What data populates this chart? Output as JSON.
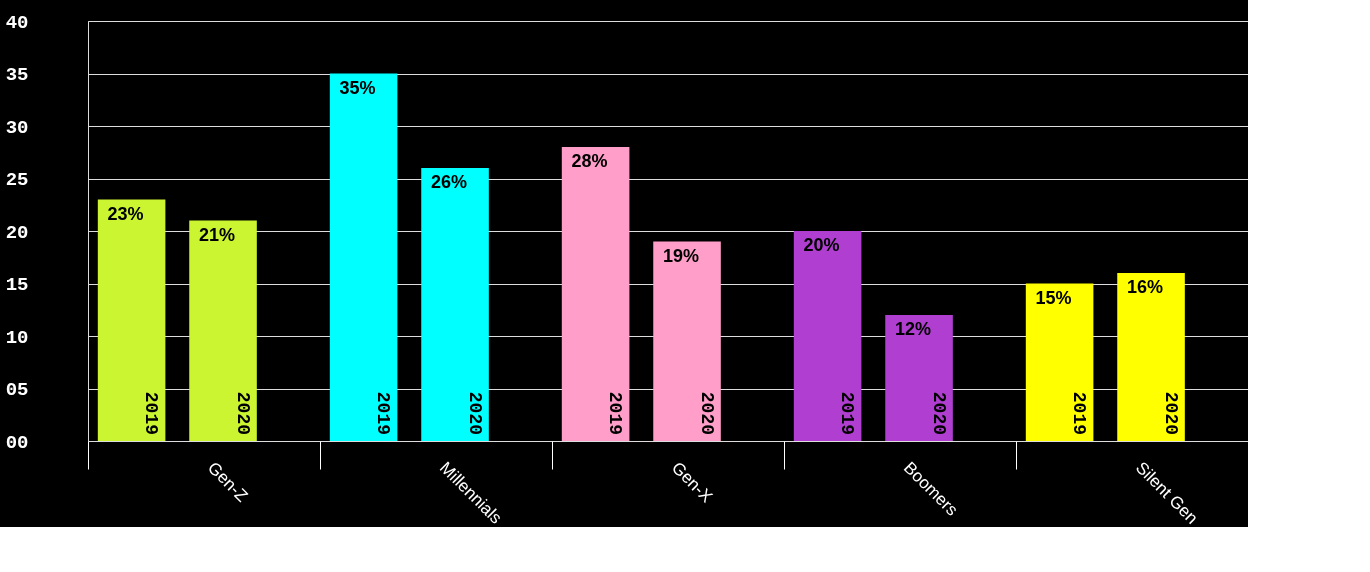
{
  "chart_data": {
    "type": "bar",
    "categories": [
      "Gen-Z",
      "Millennials",
      "Gen-X",
      "Boomers",
      "Silent Gen"
    ],
    "series": [
      {
        "name": "2019",
        "colors": [
          "#ccf531",
          "#00ffff",
          "#ff9ec8",
          "#b03fd1",
          "#ffff00"
        ],
        "values": [
          23,
          35,
          28,
          20,
          15
        ],
        "value_labels": [
          "23%",
          "35%",
          "28%",
          "20%",
          "15%"
        ]
      },
      {
        "name": "2020",
        "colors": [
          "#ccf531",
          "#00ffff",
          "#ff9ec8",
          "#b03fd1",
          "#ffff00"
        ],
        "values": [
          21,
          26,
          19,
          12,
          16
        ],
        "value_labels": [
          "21%",
          "26%",
          "19%",
          "12%",
          "16%"
        ]
      }
    ],
    "ylim": [
      0,
      40
    ],
    "yticks": [
      {
        "value": 0,
        "label": "00"
      },
      {
        "value": 5,
        "label": "05"
      },
      10,
      15,
      20,
      25,
      30,
      35,
      40
    ],
    "grid": "y"
  }
}
